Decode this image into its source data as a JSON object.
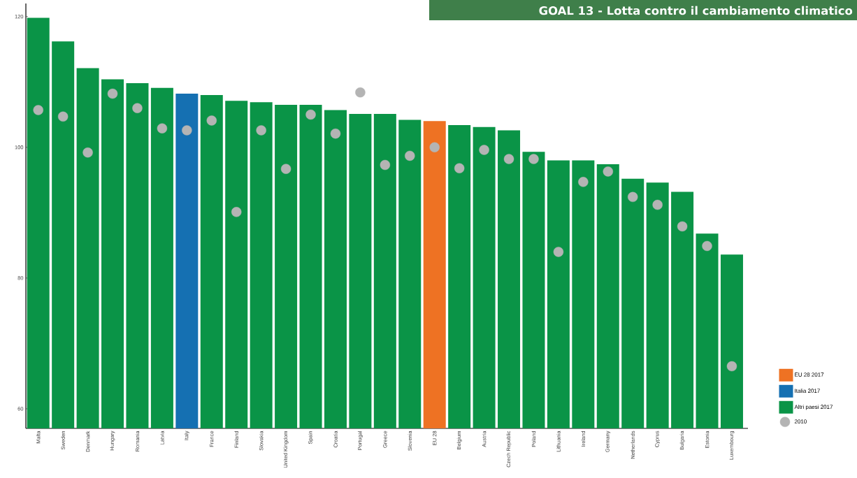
{
  "chart_data": {
    "type": "bar",
    "title": "GOAL 13 - Lotta contro il cambiamento climatico",
    "categories": [
      "Malta",
      "Sweden",
      "Denmark",
      "Hungary",
      "Romania",
      "Latvia",
      "Italy",
      "France",
      "Finland",
      "Slovakia",
      "United Kingdom",
      "Spain",
      "Croatia",
      "Portugal",
      "Greece",
      "Slovenia",
      "EU 28",
      "Belgium",
      "Austria",
      "Czech Republic",
      "Poland",
      "Lithuania",
      "Ireland",
      "Germany",
      "Netherlands",
      "Cyprus",
      "Bulgaria",
      "Estonia",
      "Luxembourg"
    ],
    "series": [
      {
        "name": "EU 28 2017",
        "color": "#ee7223",
        "values": [
          null,
          null,
          null,
          null,
          null,
          null,
          null,
          null,
          null,
          null,
          null,
          null,
          null,
          null,
          null,
          null,
          104.0,
          null,
          null,
          null,
          null,
          null,
          null,
          null,
          null,
          null,
          null,
          null,
          null
        ]
      },
      {
        "name": "Italia 2017",
        "color": "#1570b2",
        "values": [
          null,
          null,
          null,
          null,
          null,
          null,
          108.2,
          null,
          null,
          null,
          null,
          null,
          null,
          null,
          null,
          null,
          null,
          null,
          null,
          null,
          null,
          null,
          null,
          null,
          null,
          null,
          null,
          null,
          null
        ]
      },
      {
        "name": "Altri paesi 2017",
        "color": "#0a9447",
        "values": [
          119.8,
          116.2,
          112.1,
          110.4,
          109.8,
          109.1,
          null,
          108.0,
          107.1,
          106.9,
          106.5,
          106.5,
          105.7,
          105.1,
          105.1,
          104.2,
          null,
          103.4,
          103.1,
          102.6,
          99.3,
          98.0,
          98.0,
          97.4,
          95.2,
          94.6,
          93.2,
          86.8,
          83.6
        ]
      },
      {
        "name": "2010",
        "type": "scatter",
        "color": "#b4b4b4",
        "values": [
          105.7,
          104.7,
          99.2,
          108.2,
          106.0,
          102.9,
          102.6,
          104.1,
          90.1,
          102.6,
          96.7,
          105.0,
          102.1,
          108.4,
          97.3,
          98.7,
          100.0,
          96.8,
          99.6,
          98.2,
          98.2,
          84.0,
          94.7,
          96.3,
          92.4,
          91.2,
          87.9,
          84.9,
          66.5
        ]
      }
    ],
    "ylim": [
      57,
      122
    ],
    "yticks": [
      60,
      80,
      100,
      120
    ],
    "legend": "right"
  }
}
